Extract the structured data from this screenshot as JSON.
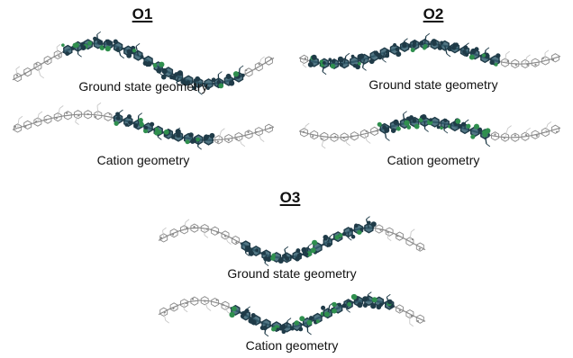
{
  "panels": [
    {
      "id": "o1",
      "title": "O1",
      "structures": [
        {
          "caption": "Ground state geometry",
          "charged_span": [
            0.18,
            0.88
          ]
        },
        {
          "caption": "Cation geometry",
          "charged_span": [
            0.38,
            0.78
          ]
        }
      ]
    },
    {
      "id": "o2",
      "title": "O2",
      "structures": [
        {
          "caption": "Ground state geometry",
          "charged_span": [
            0.02,
            0.78
          ]
        },
        {
          "caption": "Cation geometry",
          "charged_span": [
            0.3,
            0.72
          ]
        }
      ]
    },
    {
      "id": "o3",
      "title": "O3",
      "structures": [
        {
          "caption": "Ground state geometry",
          "charged_span": [
            0.3,
            0.8
          ]
        },
        {
          "caption": "Cation geometry",
          "charged_span": [
            0.26,
            0.88
          ]
        }
      ]
    }
  ],
  "colors": {
    "charged_atoms": "#355f70",
    "charged_dark": "#1f3b48",
    "accent_atoms": "#2f8f4e",
    "neutral_atoms": "#8a8a8a",
    "neutral_light": "#c8c8c8"
  }
}
